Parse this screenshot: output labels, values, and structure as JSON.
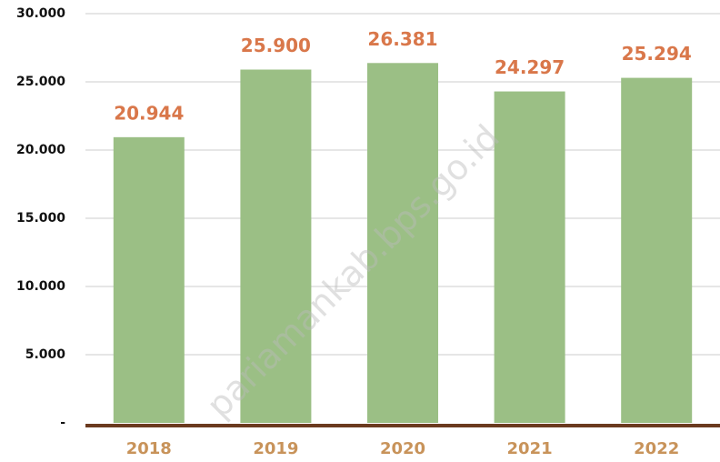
{
  "chart_data": {
    "type": "bar",
    "categories": [
      "2018",
      "2019",
      "2020",
      "2021",
      "2022"
    ],
    "values": [
      20944,
      25900,
      26381,
      24297,
      25294
    ],
    "value_labels": [
      "20.944",
      "25.900",
      "26.381",
      "24.297",
      "25.294"
    ],
    "color": "#9bbf85",
    "ylim": [
      0,
      30000
    ],
    "yticks": [
      {
        "value": 0,
        "label": "-"
      },
      {
        "value": 5000,
        "label": "5.000"
      },
      {
        "value": 10000,
        "label": "10.000"
      },
      {
        "value": 15000,
        "label": "15.000"
      },
      {
        "value": 20000,
        "label": "20.000"
      },
      {
        "value": 25000,
        "label": "25.000"
      },
      {
        "value": 30000,
        "label": "30.000"
      }
    ],
    "grid": true,
    "watermark": "pariamankab.bps.go.id"
  }
}
